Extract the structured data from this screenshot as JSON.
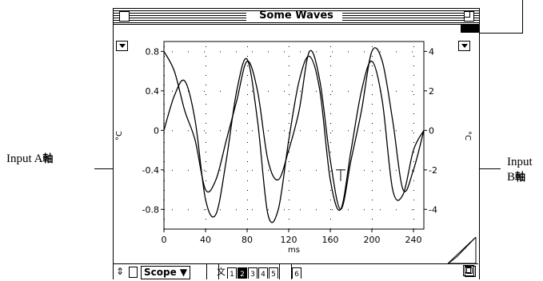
{
  "window": {
    "title": "Some Waves"
  },
  "callouts": {
    "left": {
      "text": "Input A",
      "glyph": "軸"
    },
    "right": {
      "line1": "Input",
      "line2_text": "B",
      "glyph": "軸"
    }
  },
  "left_axis": {
    "unit_label": "°C",
    "ticks": [
      "0.8",
      "0.4",
      "0",
      "-0.4",
      "-0.8"
    ]
  },
  "right_axis": {
    "unit_label": "°C",
    "ticks": [
      "4",
      "2",
      "0",
      "-2",
      "-4"
    ]
  },
  "x_axis": {
    "unit_label": "ms",
    "ticks": [
      "0",
      "40",
      "80",
      "120",
      "160",
      "200",
      "240"
    ]
  },
  "bottom_bar": {
    "mode_label": "Scope",
    "tabs": [
      "1",
      "2",
      "3",
      "4",
      "5",
      "6"
    ],
    "active_tab": "2"
  },
  "chart_data": {
    "type": "line",
    "xlabel": "ms",
    "ylabel": "°C",
    "y2label": "°C",
    "xlim": [
      0,
      250
    ],
    "ylim": [
      -1.0,
      0.9
    ],
    "y2lim": [
      -5.0,
      4.5
    ],
    "grid": true,
    "series": [
      {
        "axis": "left",
        "x": [
          0,
          10,
          20,
          30,
          40,
          50,
          60,
          70,
          80,
          90,
          100,
          110,
          120,
          130,
          140,
          150,
          160,
          170,
          180,
          190,
          200,
          210,
          220,
          230,
          240,
          250
        ],
        "y": [
          0.0,
          0.35,
          0.5,
          0.1,
          -0.7,
          -0.85,
          -0.3,
          0.4,
          0.72,
          0.1,
          -0.85,
          -0.8,
          -0.1,
          0.5,
          0.75,
          0.4,
          -0.5,
          -0.8,
          -0.2,
          0.4,
          0.7,
          0.3,
          -0.6,
          -0.65,
          -0.2,
          0.0
        ]
      },
      {
        "axis": "right",
        "x": [
          0,
          10,
          20,
          30,
          40,
          50,
          60,
          70,
          80,
          90,
          100,
          110,
          120,
          130,
          140,
          150,
          160,
          170,
          180,
          190,
          200,
          210,
          220,
          230,
          240,
          250
        ],
        "y": [
          4.0,
          3.0,
          1.0,
          -0.5,
          -3.0,
          -2.5,
          -0.5,
          1.5,
          3.5,
          2.0,
          -1.5,
          -2.5,
          -1.0,
          1.0,
          4.0,
          2.5,
          -1.5,
          -4.0,
          -1.5,
          1.0,
          4.0,
          3.5,
          0.5,
          -3.0,
          -2.0,
          0.0
        ]
      }
    ]
  }
}
